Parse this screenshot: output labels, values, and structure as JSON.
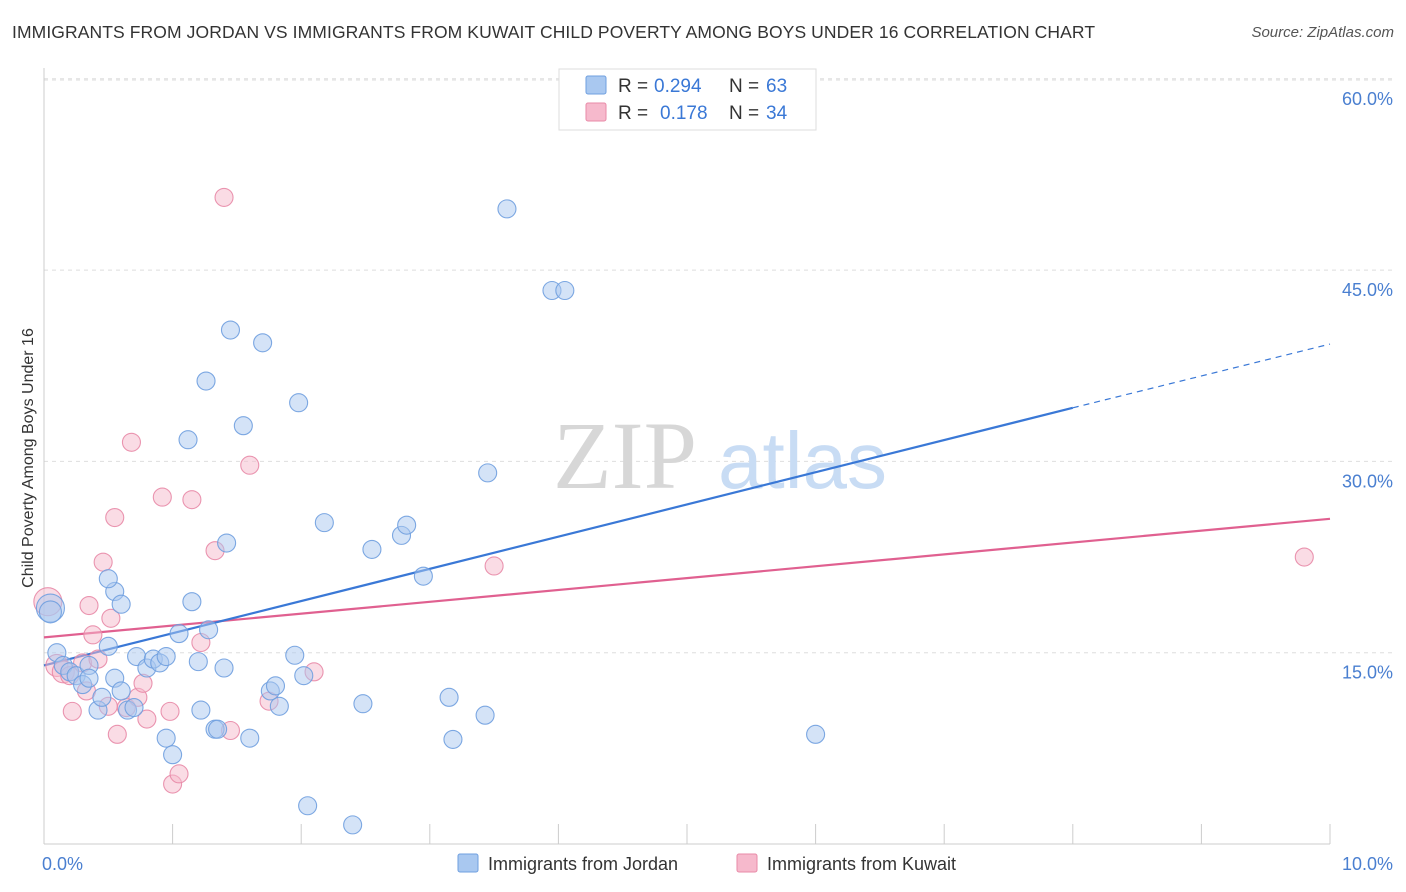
{
  "title": "IMMIGRANTS FROM JORDAN VS IMMIGRANTS FROM KUWAIT CHILD POVERTY AMONG BOYS UNDER 16 CORRELATION CHART",
  "source": "Source: ZipAtlas.com",
  "watermark": {
    "zip": "ZIP",
    "atlas": "atlas"
  },
  "legend": {
    "r_label": "R =",
    "n_label": "N =",
    "jordan": {
      "r": "0.294",
      "n": "63"
    },
    "kuwait": {
      "r": "0.178",
      "n": "34"
    }
  },
  "chart_data": {
    "type": "scatter",
    "title": "IMMIGRANTS FROM JORDAN VS IMMIGRANTS FROM KUWAIT CHILD POVERTY AMONG BOYS UNDER 16 CORRELATION CHART",
    "xlabel": "",
    "ylabel": "Child Poverty Among Boys Under 16",
    "xlim": [
      0,
      10
    ],
    "ylim": [
      0,
      61
    ],
    "x_tick_labels": [
      {
        "value": 0,
        "label": "0.0%"
      },
      {
        "value": 10,
        "label": "10.0%"
      }
    ],
    "y_tick_labels": [
      {
        "value": 15,
        "label": "15.0%"
      },
      {
        "value": 30,
        "label": "30.0%"
      },
      {
        "value": 45,
        "label": "45.0%"
      },
      {
        "value": 60,
        "label": "60.0%"
      }
    ],
    "colors": {
      "jordan": "#a9c8f0",
      "jordan_edge": "#6f9fdf",
      "jordan_line": "#3a78d6",
      "kuwait": "#f6b9cc",
      "kuwait_edge": "#e88aa7",
      "kuwait_line": "#e06090"
    },
    "series": [
      {
        "name": "Immigrants from Jordan",
        "r": 0.294,
        "n": 63,
        "trend": {
          "x0": 0,
          "y0": 14.0,
          "x1": 8.0,
          "y1": 34.2,
          "dash_x1": 10.0,
          "dash_y1": 39.2
        },
        "points": [
          [
            0.05,
            18.5,
            14
          ],
          [
            0.05,
            18.2,
            11
          ],
          [
            0.1,
            15.0,
            9
          ],
          [
            0.15,
            14.0,
            9
          ],
          [
            0.2,
            13.5,
            9
          ],
          [
            0.25,
            13.2,
            9
          ],
          [
            0.35,
            14.0,
            9
          ],
          [
            0.3,
            12.5,
            9
          ],
          [
            0.35,
            13.0,
            9
          ],
          [
            0.42,
            10.5,
            9
          ],
          [
            0.45,
            11.5,
            9
          ],
          [
            0.5,
            15.5,
            9
          ],
          [
            0.55,
            19.8,
            9
          ],
          [
            0.5,
            20.8,
            9
          ],
          [
            0.6,
            18.8,
            9
          ],
          [
            0.55,
            13.0,
            9
          ],
          [
            0.6,
            12.0,
            9
          ],
          [
            0.65,
            10.5,
            9
          ],
          [
            0.7,
            10.7,
            9
          ],
          [
            0.72,
            14.7,
            9
          ],
          [
            0.8,
            13.8,
            9
          ],
          [
            0.85,
            14.5,
            9
          ],
          [
            0.9,
            14.2,
            9
          ],
          [
            0.95,
            14.7,
            9
          ],
          [
            0.95,
            8.3,
            9
          ],
          [
            1.0,
            7.0,
            9
          ],
          [
            1.05,
            16.5,
            9
          ],
          [
            1.12,
            31.7,
            9
          ],
          [
            1.15,
            19.0,
            9
          ],
          [
            1.2,
            14.3,
            9
          ],
          [
            1.22,
            10.5,
            9
          ],
          [
            1.26,
            36.3,
            9
          ],
          [
            1.28,
            16.8,
            9
          ],
          [
            1.33,
            9.0,
            9
          ],
          [
            1.35,
            9.0,
            9
          ],
          [
            1.4,
            13.8,
            9
          ],
          [
            1.42,
            23.6,
            9
          ],
          [
            1.45,
            40.3,
            9
          ],
          [
            1.55,
            32.8,
            9
          ],
          [
            1.6,
            8.3,
            9
          ],
          [
            1.7,
            39.3,
            9
          ],
          [
            1.76,
            12.0,
            9
          ],
          [
            1.8,
            12.4,
            9
          ],
          [
            1.83,
            10.8,
            9
          ],
          [
            1.95,
            14.8,
            9
          ],
          [
            1.98,
            34.6,
            9
          ],
          [
            2.02,
            13.2,
            9
          ],
          [
            2.05,
            3.0,
            9
          ],
          [
            2.18,
            25.2,
            9
          ],
          [
            2.4,
            1.5,
            9
          ],
          [
            2.48,
            11.0,
            9
          ],
          [
            2.55,
            23.1,
            9
          ],
          [
            2.78,
            24.2,
            9
          ],
          [
            2.82,
            25.0,
            9
          ],
          [
            2.95,
            21.0,
            9
          ],
          [
            3.15,
            11.5,
            9
          ],
          [
            3.18,
            8.2,
            9
          ],
          [
            3.45,
            29.1,
            9
          ],
          [
            3.43,
            10.1,
            9
          ],
          [
            3.6,
            49.8,
            9
          ],
          [
            3.95,
            43.4,
            9
          ],
          [
            4.05,
            43.4,
            9
          ],
          [
            6.0,
            8.6,
            9
          ]
        ]
      },
      {
        "name": "Immigrants from Kuwait",
        "r": 0.178,
        "n": 34,
        "trend": {
          "x0": 0,
          "y0": 16.2,
          "x1": 10.0,
          "y1": 25.5
        },
        "points": [
          [
            0.03,
            19.0,
            14
          ],
          [
            0.1,
            14.0,
            11
          ],
          [
            0.15,
            13.5,
            11
          ],
          [
            0.2,
            13.2,
            9
          ],
          [
            0.22,
            10.4,
            9
          ],
          [
            0.3,
            14.2,
            9
          ],
          [
            0.33,
            12.0,
            9
          ],
          [
            0.35,
            18.7,
            9
          ],
          [
            0.38,
            16.4,
            9
          ],
          [
            0.42,
            14.5,
            9
          ],
          [
            0.46,
            22.1,
            9
          ],
          [
            0.5,
            10.8,
            9
          ],
          [
            0.52,
            17.7,
            9
          ],
          [
            0.55,
            25.6,
            9
          ],
          [
            0.57,
            8.6,
            9
          ],
          [
            0.64,
            10.7,
            9
          ],
          [
            0.68,
            31.5,
            9
          ],
          [
            0.73,
            11.5,
            9
          ],
          [
            0.77,
            12.6,
            9
          ],
          [
            0.8,
            9.8,
            9
          ],
          [
            0.92,
            27.2,
            9
          ],
          [
            0.98,
            10.4,
            9
          ],
          [
            1.0,
            4.7,
            9
          ],
          [
            1.05,
            5.5,
            9
          ],
          [
            1.15,
            27.0,
            9
          ],
          [
            1.22,
            15.8,
            9
          ],
          [
            1.33,
            23.0,
            9
          ],
          [
            1.4,
            50.7,
            9
          ],
          [
            1.45,
            8.9,
            9
          ],
          [
            1.6,
            29.7,
            9
          ],
          [
            1.75,
            11.2,
            9
          ],
          [
            2.1,
            13.5,
            9
          ],
          [
            3.5,
            21.8,
            9
          ],
          [
            9.8,
            22.5,
            9
          ]
        ]
      }
    ],
    "legend_entries": [
      "Immigrants from Jordan",
      "Immigrants from Kuwait"
    ],
    "legend_position": "top-center"
  }
}
